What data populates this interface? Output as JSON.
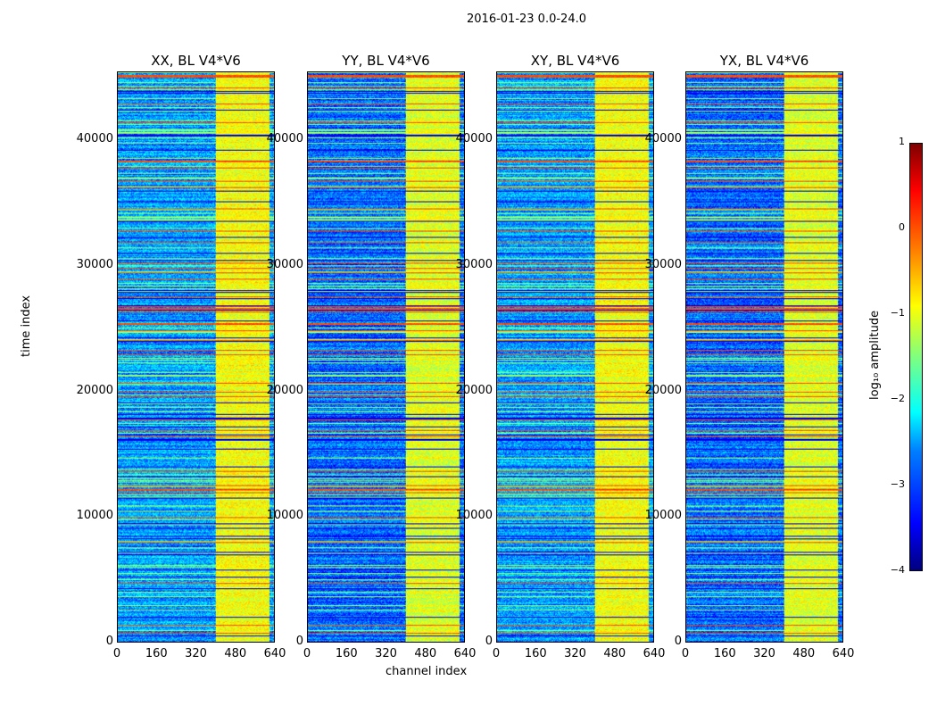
{
  "chart_data": {
    "type": "heatmap",
    "title": "2016-01-23 0.0-24.0",
    "xlabel": "channel index",
    "ylabel": "time index",
    "xlim": [
      0,
      640
    ],
    "ylim": [
      0,
      45500
    ],
    "xticks": [
      "0",
      "160",
      "320",
      "480",
      "640"
    ],
    "yticks": [
      "0",
      "10000",
      "20000",
      "30000",
      "40000"
    ],
    "panels": [
      {
        "title": "XX, BL V4*V6"
      },
      {
        "title": "YY, BL V4*V6"
      },
      {
        "title": "XY, BL V4*V6"
      },
      {
        "title": "YX, BL V4*V6"
      }
    ],
    "colorbar": {
      "label": "log₁₀ amplitude",
      "range": [
        -4,
        1
      ],
      "ticks": [
        "1",
        "0",
        "−1",
        "−2",
        "−3",
        "−4"
      ],
      "colormap": "jet"
    },
    "features": {
      "background_log_amplitude": -2.7,
      "high_band_channels": [
        400,
        620
      ],
      "high_band_log_amplitude": -1.0,
      "rfi_rows_log_amplitude": 0.0
    }
  }
}
